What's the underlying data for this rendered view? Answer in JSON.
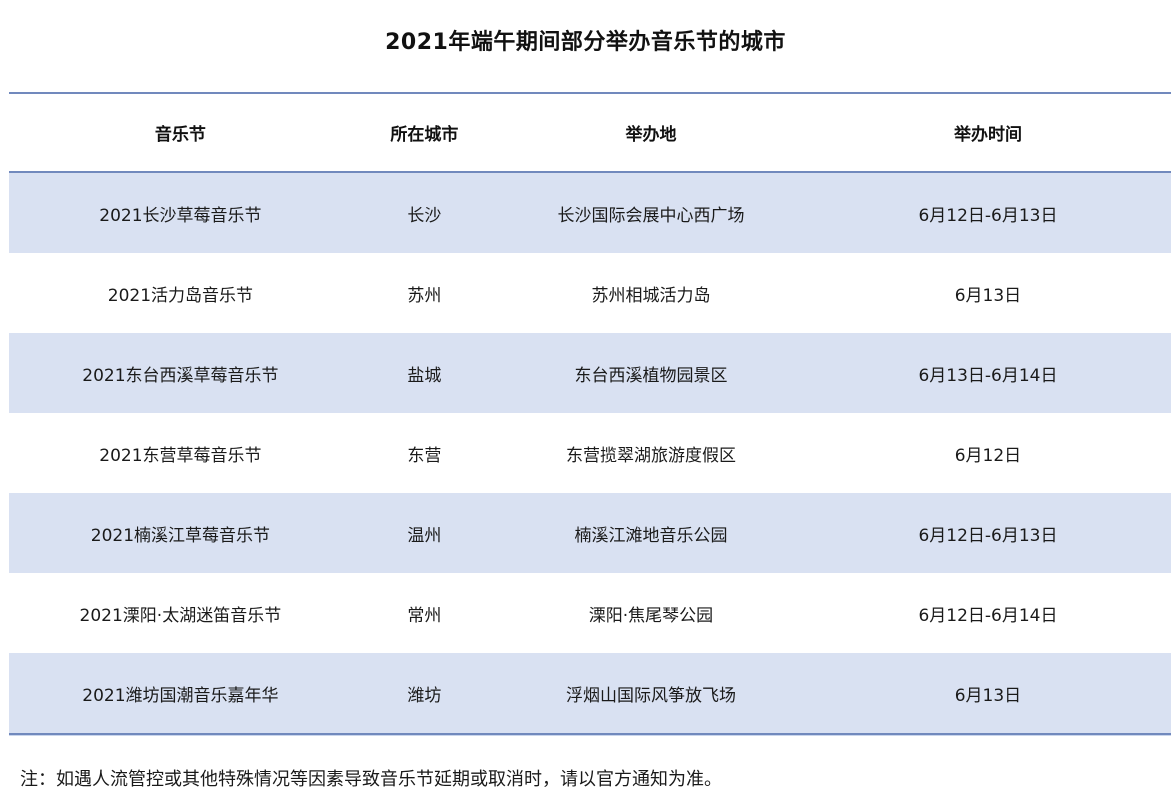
{
  "colors": {
    "border_blue": "#7189bd",
    "row_shade": "#d9e1f2",
    "background": "#ffffff",
    "text": "#1a1a1a"
  },
  "chart_data": {
    "type": "table",
    "title": "2021年端午期间部分举办音乐节的城市",
    "columns": [
      "音乐节",
      "所在城市",
      "举办地",
      "举办时间"
    ],
    "rows": [
      {
        "festival": "2021长沙草莓音乐节",
        "city": "长沙",
        "venue": "长沙国际会展中心西广场",
        "date": "6月12日-6月13日"
      },
      {
        "festival": "2021活力岛音乐节",
        "city": "苏州",
        "venue": "苏州相城活力岛",
        "date": "6月13日"
      },
      {
        "festival": "2021东台西溪草莓音乐节",
        "city": "盐城",
        "venue": "东台西溪植物园景区",
        "date": "6月13日-6月14日"
      },
      {
        "festival": "2021东营草莓音乐节",
        "city": "东营",
        "venue": "东营揽翠湖旅游度假区",
        "date": "6月12日"
      },
      {
        "festival": "2021楠溪江草莓音乐节",
        "city": "温州",
        "venue": "楠溪江滩地音乐公园",
        "date": "6月12日-6月13日"
      },
      {
        "festival": "2021溧阳·太湖迷笛音乐节",
        "city": "常州",
        "venue": "溧阳·焦尾琴公园",
        "date": "6月12日-6月14日"
      },
      {
        "festival": "2021潍坊国潮音乐嘉年华",
        "city": "潍坊",
        "venue": "浮烟山国际风筝放飞场",
        "date": "6月13日"
      }
    ],
    "note": "注：如遇人流管控或其他特殊情况等因素导致音乐节延期或取消时，请以官方通知为准。",
    "layout": {
      "striped": "odd rows shaded light blue",
      "rules": "blue horizontal rules above header, below header, below last row",
      "alignment": "all cells centered"
    }
  }
}
